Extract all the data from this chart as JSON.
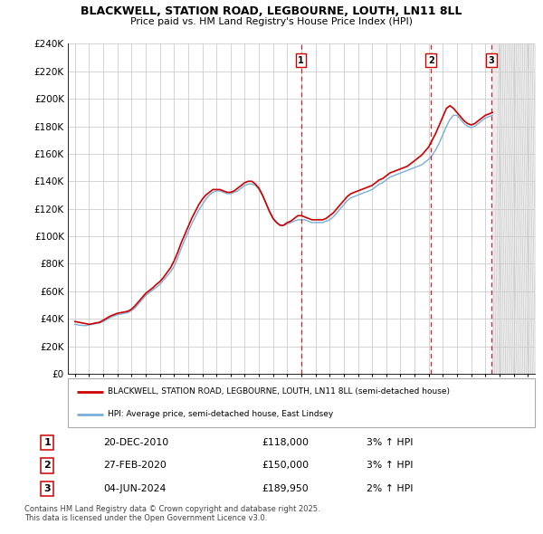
{
  "title": "BLACKWELL, STATION ROAD, LEGBOURNE, LOUTH, LN11 8LL",
  "subtitle": "Price paid vs. HM Land Registry's House Price Index (HPI)",
  "hpi_color": "#7aadd9",
  "price_color": "#cc0000",
  "sale_line_color": "#cc0000",
  "background_color": "#ffffff",
  "grid_color": "#cccccc",
  "ylim": [
    0,
    240000
  ],
  "yticks": [
    0,
    20000,
    40000,
    60000,
    80000,
    100000,
    120000,
    140000,
    160000,
    180000,
    200000,
    220000,
    240000
  ],
  "xlim_start": 1994.5,
  "xlim_end": 2027.5,
  "xticks": [
    1995,
    1996,
    1997,
    1998,
    1999,
    2000,
    2001,
    2002,
    2003,
    2004,
    2005,
    2006,
    2007,
    2008,
    2009,
    2010,
    2011,
    2012,
    2013,
    2014,
    2015,
    2016,
    2017,
    2018,
    2019,
    2020,
    2021,
    2022,
    2023,
    2024,
    2025,
    2026,
    2027
  ],
  "sales": [
    {
      "label": "1",
      "year": 2010.97,
      "price": 118000,
      "date": "20-DEC-2010",
      "price_str": "£118,000",
      "pct": "3%",
      "dir": "↑"
    },
    {
      "label": "2",
      "year": 2020.16,
      "price": 150000,
      "date": "27-FEB-2020",
      "price_str": "£150,000",
      "pct": "3%",
      "dir": "↑"
    },
    {
      "label": "3",
      "year": 2024.43,
      "price": 189950,
      "date": "04-JUN-2024",
      "price_str": "£189,950",
      "pct": "2%",
      "dir": "↑"
    }
  ],
  "legend_label_red": "BLACKWELL, STATION ROAD, LEGBOURNE, LOUTH, LN11 8LL (semi-detached house)",
  "legend_label_blue": "HPI: Average price, semi-detached house, East Lindsey",
  "footnote": "Contains HM Land Registry data © Crown copyright and database right 2025.\nThis data is licensed under the Open Government Licence v3.0.",
  "hpi_data": {
    "years": [
      1995.0,
      1995.25,
      1995.5,
      1995.75,
      1996.0,
      1996.25,
      1996.5,
      1996.75,
      1997.0,
      1997.25,
      1997.5,
      1997.75,
      1998.0,
      1998.25,
      1998.5,
      1998.75,
      1999.0,
      1999.25,
      1999.5,
      1999.75,
      2000.0,
      2000.25,
      2000.5,
      2000.75,
      2001.0,
      2001.25,
      2001.5,
      2001.75,
      2002.0,
      2002.25,
      2002.5,
      2002.75,
      2003.0,
      2003.25,
      2003.5,
      2003.75,
      2004.0,
      2004.25,
      2004.5,
      2004.75,
      2005.0,
      2005.25,
      2005.5,
      2005.75,
      2006.0,
      2006.25,
      2006.5,
      2006.75,
      2007.0,
      2007.25,
      2007.5,
      2007.75,
      2008.0,
      2008.25,
      2008.5,
      2008.75,
      2009.0,
      2009.25,
      2009.5,
      2009.75,
      2010.0,
      2010.25,
      2010.5,
      2010.75,
      2011.0,
      2011.25,
      2011.5,
      2011.75,
      2012.0,
      2012.25,
      2012.5,
      2012.75,
      2013.0,
      2013.25,
      2013.5,
      2013.75,
      2014.0,
      2014.25,
      2014.5,
      2014.75,
      2015.0,
      2015.25,
      2015.5,
      2015.75,
      2016.0,
      2016.25,
      2016.5,
      2016.75,
      2017.0,
      2017.25,
      2017.5,
      2017.75,
      2018.0,
      2018.25,
      2018.5,
      2018.75,
      2019.0,
      2019.25,
      2019.5,
      2019.75,
      2020.0,
      2020.25,
      2020.5,
      2020.75,
      2021.0,
      2021.25,
      2021.5,
      2021.75,
      2022.0,
      2022.25,
      2022.5,
      2022.75,
      2023.0,
      2023.25,
      2023.5,
      2023.75,
      2024.0,
      2024.25,
      2024.5
    ],
    "values": [
      36000,
      35500,
      35200,
      35000,
      35500,
      36000,
      36500,
      37000,
      38000,
      39500,
      41000,
      42000,
      43000,
      43500,
      44000,
      44500,
      46000,
      48000,
      51000,
      54000,
      57000,
      59000,
      61000,
      63000,
      65000,
      68000,
      71000,
      74000,
      78000,
      84000,
      91000,
      97000,
      103000,
      109000,
      114000,
      119000,
      123000,
      127000,
      130000,
      132000,
      133000,
      133000,
      132000,
      131000,
      131000,
      132000,
      133000,
      135000,
      137000,
      138000,
      138000,
      137000,
      134000,
      130000,
      124000,
      118000,
      113000,
      110000,
      108000,
      108000,
      109000,
      110000,
      111000,
      112000,
      112000,
      112000,
      111000,
      110000,
      110000,
      110000,
      110000,
      111000,
      112000,
      114000,
      117000,
      120000,
      123000,
      126000,
      128000,
      129000,
      130000,
      131000,
      132000,
      133000,
      134000,
      136000,
      138000,
      139000,
      141000,
      143000,
      144000,
      145000,
      146000,
      147000,
      148000,
      149000,
      150000,
      151000,
      152000,
      154000,
      156000,
      159000,
      163000,
      168000,
      174000,
      180000,
      185000,
      188000,
      188000,
      185000,
      182000,
      180000,
      179000,
      180000,
      182000,
      184000,
      186000,
      187000,
      188000
    ]
  },
  "price_paid_data": {
    "years": [
      1995.0,
      1995.25,
      1995.5,
      1995.75,
      1996.0,
      1996.25,
      1996.5,
      1996.75,
      1997.0,
      1997.25,
      1997.5,
      1997.75,
      1998.0,
      1998.25,
      1998.5,
      1998.75,
      1999.0,
      1999.25,
      1999.5,
      1999.75,
      2000.0,
      2000.25,
      2000.5,
      2000.75,
      2001.0,
      2001.25,
      2001.5,
      2001.75,
      2002.0,
      2002.25,
      2002.5,
      2002.75,
      2003.0,
      2003.25,
      2003.5,
      2003.75,
      2004.0,
      2004.25,
      2004.5,
      2004.75,
      2005.0,
      2005.25,
      2005.5,
      2005.75,
      2006.0,
      2006.25,
      2006.5,
      2006.75,
      2007.0,
      2007.25,
      2007.5,
      2007.75,
      2008.0,
      2008.25,
      2008.5,
      2008.75,
      2009.0,
      2009.25,
      2009.5,
      2009.75,
      2010.0,
      2010.25,
      2010.5,
      2010.75,
      2011.0,
      2011.25,
      2011.5,
      2011.75,
      2012.0,
      2012.25,
      2012.5,
      2012.75,
      2013.0,
      2013.25,
      2013.5,
      2013.75,
      2014.0,
      2014.25,
      2014.5,
      2014.75,
      2015.0,
      2015.25,
      2015.5,
      2015.75,
      2016.0,
      2016.25,
      2016.5,
      2016.75,
      2017.0,
      2017.25,
      2017.5,
      2017.75,
      2018.0,
      2018.25,
      2018.5,
      2018.75,
      2019.0,
      2019.25,
      2019.5,
      2019.75,
      2020.0,
      2020.25,
      2020.5,
      2020.75,
      2021.0,
      2021.25,
      2021.5,
      2021.75,
      2022.0,
      2022.25,
      2022.5,
      2022.75,
      2023.0,
      2023.25,
      2023.5,
      2023.75,
      2024.0,
      2024.25,
      2024.5
    ],
    "values": [
      38000,
      37500,
      37000,
      36500,
      36000,
      36500,
      37000,
      37500,
      39000,
      40500,
      42000,
      43000,
      44000,
      44500,
      45000,
      45500,
      47000,
      49500,
      52500,
      55500,
      58500,
      60500,
      62500,
      65000,
      67000,
      70000,
      73500,
      77000,
      82000,
      88000,
      95000,
      101000,
      107000,
      113000,
      118000,
      123000,
      127000,
      130000,
      132000,
      134000,
      134000,
      134000,
      133000,
      132000,
      132000,
      133000,
      135000,
      137000,
      139000,
      140000,
      140000,
      138000,
      135000,
      130000,
      124000,
      118000,
      113000,
      110000,
      108000,
      108000,
      110000,
      111000,
      113000,
      115000,
      115000,
      114000,
      113000,
      112000,
      112000,
      112000,
      112000,
      113000,
      115000,
      117000,
      120000,
      123000,
      126000,
      129000,
      131000,
      132000,
      133000,
      134000,
      135000,
      136000,
      137000,
      139000,
      141000,
      142000,
      144000,
      146000,
      147000,
      148000,
      149000,
      150000,
      151000,
      153000,
      155000,
      157000,
      159000,
      162000,
      165000,
      170000,
      175000,
      181000,
      187000,
      193000,
      195000,
      193000,
      190000,
      187000,
      184000,
      182000,
      181000,
      182000,
      184000,
      186000,
      188000,
      189000,
      190000
    ]
  }
}
